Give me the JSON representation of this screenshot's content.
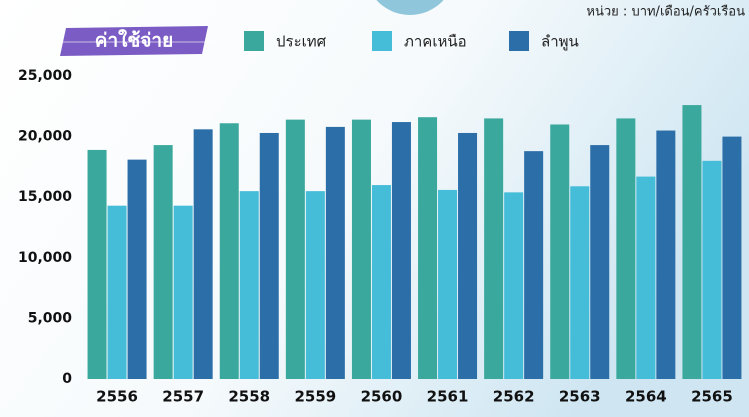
{
  "chart_data": {
    "type": "bar",
    "title": "ค่าใช้จ่าย",
    "unit": "หน่วย : บาท/เดือน/ครัวเรือน",
    "categories": [
      "2556",
      "2557",
      "2558",
      "2559",
      "2560",
      "2561",
      "2562",
      "2563",
      "2564",
      "2565"
    ],
    "series": [
      {
        "name": "ประเทศ",
        "color": "#3aa89c",
        "values": [
          18900,
          19300,
          21100,
          21400,
          21400,
          21600,
          21500,
          21000,
          21500,
          22600
        ]
      },
      {
        "name": "ภาคเหนือ",
        "color": "#45bcd8",
        "values": [
          14300,
          14300,
          15500,
          15500,
          16000,
          15600,
          15400,
          15900,
          16700,
          18000
        ]
      },
      {
        "name": "ลำพูน",
        "color": "#2b6ea8",
        "values": [
          18100,
          20600,
          20300,
          20800,
          21200,
          20300,
          18800,
          19300,
          20500,
          20000
        ]
      }
    ],
    "ylim": [
      0,
      25000
    ],
    "yticks": [
      0,
      {
        "value": 5000,
        "label": "5,000"
      },
      {
        "value": 10000,
        "label": "10,000"
      },
      {
        "value": 15000,
        "label": "15,000"
      },
      {
        "value": 20000,
        "label": "20,000"
      },
      {
        "value": 25000,
        "label": "25,000"
      }
    ],
    "grid": false
  }
}
